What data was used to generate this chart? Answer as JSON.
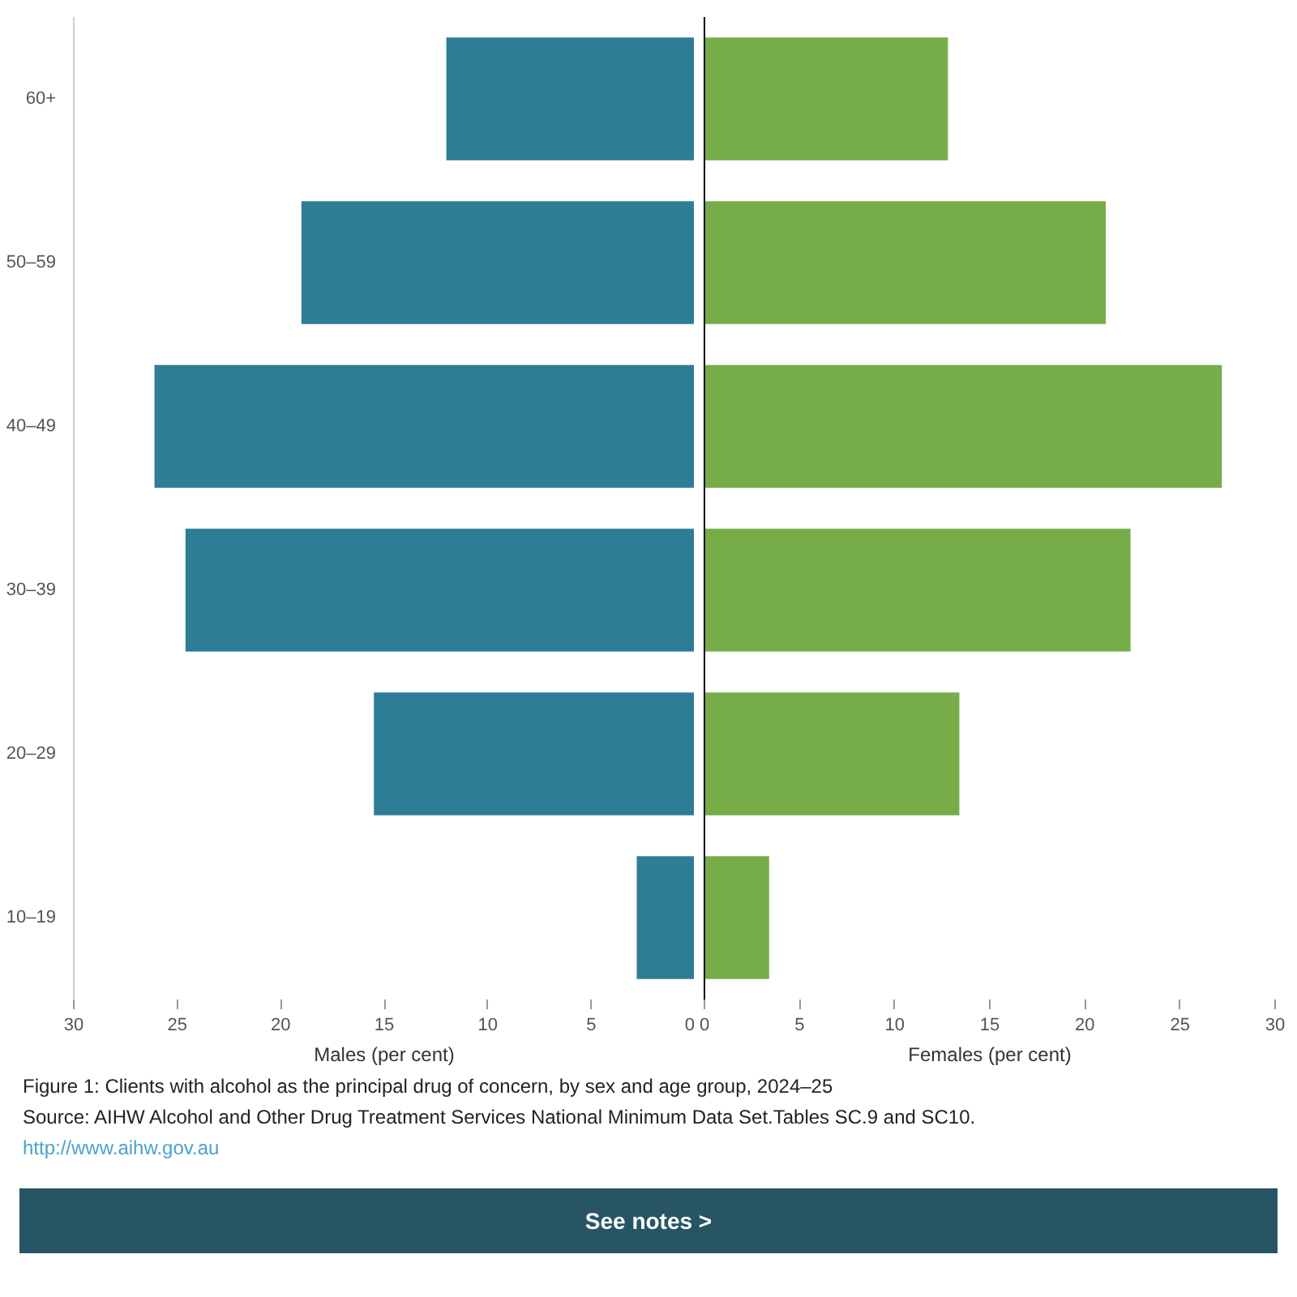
{
  "chart_data": [
    {
      "type": "bar",
      "orientation": "horizontal",
      "categories": [
        "60+",
        "50–59",
        "40–49",
        "30–39",
        "20–29",
        "10–19"
      ],
      "xlabel": "Males (per cent)",
      "xlim": [
        30,
        0
      ],
      "xticks": [
        30,
        25,
        20,
        15,
        10,
        5,
        0
      ],
      "grid": false,
      "series": [
        {
          "color": "#2e7d96",
          "values": [
            12.0,
            19.0,
            26.1,
            24.6,
            15.5,
            2.8
          ]
        }
      ],
      "annotations": [
        "Figure 1: Clients with alcohol as the principal drug of concern, by sex and age group, 2024–25",
        "Source: AIHW Alcohol and Other Drug Treatment Services National Minimum Data Set.Tables SC.9 and SC10.",
        "http://www.aihw.gov.au",
        "See notes >"
      ]
    },
    {
      "type": "bar",
      "orientation": "horizontal",
      "categories": [
        null,
        null,
        null,
        null,
        null,
        null
      ],
      "xlabel": "Females (per cent)",
      "xlim": [
        0,
        30
      ],
      "xticks": [
        0,
        5,
        10,
        15,
        20,
        25,
        30
      ],
      "grid": false,
      "tick_labels": "x",
      "series": [
        {
          "color": "#76ad48",
          "values": [
            12.8,
            21.1,
            27.2,
            22.4,
            13.4,
            3.4
          ]
        }
      ]
    }
  ]
}
